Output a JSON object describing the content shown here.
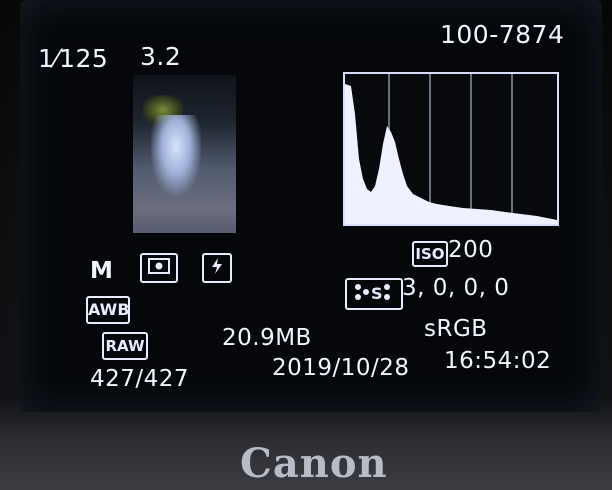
{
  "shutter": "1⁄125",
  "aperture": "3.2",
  "file_number": "100-7874",
  "histogram": {
    "label": "histogram"
  },
  "iso": {
    "label": "ISO",
    "value": "200"
  },
  "mode": "M",
  "metering_icon": "evaluative-metering-icon",
  "flash_icon": "flash-icon",
  "white_balance": "AWB",
  "picture_style": {
    "icon": "picture-style-icon",
    "values": "3,  0,  0,  0"
  },
  "format": "RAW",
  "file_size": "20.9MB",
  "color_space": "sRGB",
  "counter": "427/427",
  "date": "2019/10/28",
  "time": "16:54:02",
  "brand": "Canon"
}
